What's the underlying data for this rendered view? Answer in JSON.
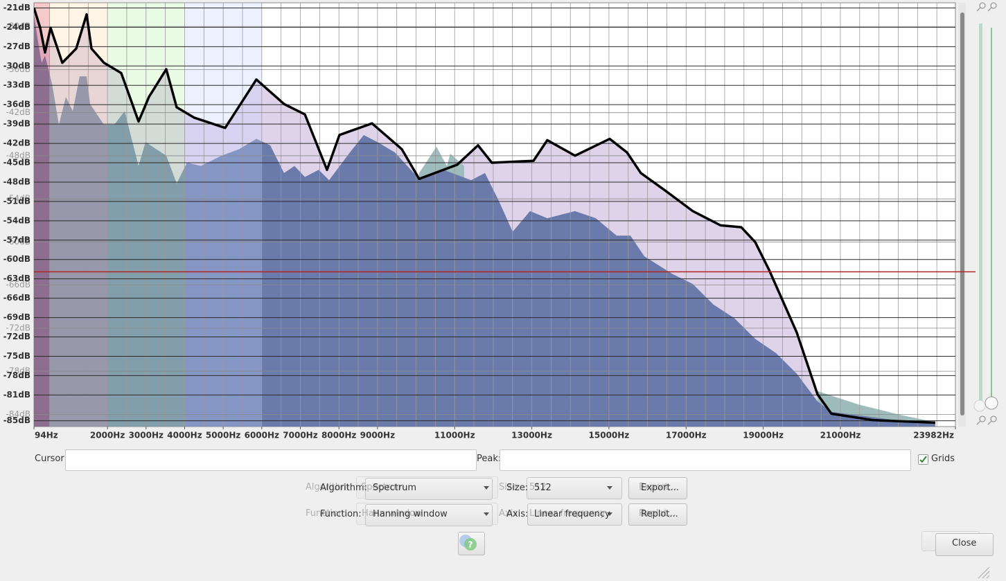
{
  "chart_data": {
    "type": "spectrum",
    "xlim": [
      94,
      23982
    ],
    "xticks": [
      {
        "value": 94,
        "label": "94Hz"
      },
      {
        "value": 2000,
        "label": "2000Hz"
      },
      {
        "value": 3000,
        "label": "3000Hz"
      },
      {
        "value": 4000,
        "label": "4000Hz"
      },
      {
        "value": 5000,
        "label": "5000Hz"
      },
      {
        "value": 6000,
        "label": "6000Hz"
      },
      {
        "value": 7000,
        "label": "7000Hz"
      },
      {
        "value": 8000,
        "label": "8000Hz"
      },
      {
        "value": 9000,
        "label": "9000Hz"
      },
      {
        "value": 11000,
        "label": "11000Hz"
      },
      {
        "value": 13000,
        "label": "13000Hz"
      },
      {
        "value": 15000,
        "label": "15000Hz"
      },
      {
        "value": 17000,
        "label": "17000Hz"
      },
      {
        "value": 19000,
        "label": "19000Hz"
      },
      {
        "value": 21000,
        "label": "21000Hz"
      },
      {
        "value": 23982,
        "label": "23982Hz"
      }
    ],
    "xminor": [
      500,
      1000,
      1500,
      2000,
      2500,
      3000,
      3500,
      4000,
      4500,
      5000,
      5500,
      6000,
      6500,
      7000,
      7500,
      8000,
      8500,
      9000,
      9500,
      10000,
      10500,
      11000,
      11500,
      12000,
      12500,
      13000,
      13500,
      14000,
      14500,
      15000,
      15500,
      16000,
      16500,
      17000,
      17500,
      18000,
      18500,
      19000,
      19500,
      20000,
      20500,
      21000,
      21500,
      22000,
      22500,
      23000,
      23500
    ],
    "ylim": [
      -20.2,
      -85.9
    ],
    "yticks": [
      {
        "value": -21,
        "label": "-21dB"
      },
      {
        "value": -24,
        "label": "-24dB"
      },
      {
        "value": -27,
        "label": "-27dB"
      },
      {
        "value": -30,
        "label": "-30dB"
      },
      {
        "value": -33,
        "label": "-33dB"
      },
      {
        "value": -36,
        "label": "-36dB"
      },
      {
        "value": -39,
        "label": "-39dB"
      },
      {
        "value": -42,
        "label": "-42dB"
      },
      {
        "value": -45,
        "label": "-45dB"
      },
      {
        "value": -48,
        "label": "-48dB"
      },
      {
        "value": -51,
        "label": "-51dB"
      },
      {
        "value": -54,
        "label": "-54dB"
      },
      {
        "value": -57,
        "label": "-57dB"
      },
      {
        "value": -60,
        "label": "-60dB"
      },
      {
        "value": -63,
        "label": "-63dB"
      },
      {
        "value": -66,
        "label": "-66dB"
      },
      {
        "value": -69,
        "label": "-69dB"
      },
      {
        "value": -72,
        "label": "-72dB"
      },
      {
        "value": -75,
        "label": "-75dB"
      },
      {
        "value": -78,
        "label": "-78dB"
      },
      {
        "value": -81,
        "label": "-81dB"
      },
      {
        "value": -85,
        "label": "-85dB"
      }
    ],
    "ghost_ylim": [
      -26.7,
      -85.7
    ],
    "ghost_yticks": [
      {
        "value": -30,
        "label": "-30dB"
      },
      {
        "value": -36,
        "label": "-36dB"
      },
      {
        "value": -42,
        "label": "-42dB"
      },
      {
        "value": -48,
        "label": "-48dB"
      },
      {
        "value": -54,
        "label": "-54dB"
      },
      {
        "value": -60,
        "label": "-60dB"
      },
      {
        "value": -66,
        "label": "-66dB"
      },
      {
        "value": -72,
        "label": "-72dB"
      },
      {
        "value": -78,
        "label": "-78dB"
      },
      {
        "value": -84,
        "label": "-84dB"
      }
    ],
    "bands": [
      {
        "from": 94,
        "to": 500,
        "color": "#e05050"
      },
      {
        "from": 500,
        "to": 2000,
        "color": "#ffd9a8"
      },
      {
        "from": 2000,
        "to": 4000,
        "color": "#b6f0a8"
      },
      {
        "from": 4000,
        "to": 6000,
        "color": "#c2d2ff"
      }
    ],
    "threshold": -61.9,
    "threshold_color": "#b22222",
    "peak": {
      "color": "#000000",
      "fill_color": "#d9cbe6",
      "x": [
        94,
        256,
        381,
        525,
        830,
        1190,
        1460,
        1585,
        1908,
        2357,
        2806,
        3075,
        3524,
        3794,
        4243,
        5051,
        5860,
        6578,
        7117,
        7691,
        8014,
        8858,
        9631,
        10080,
        11067,
        11606,
        11965,
        13043,
        13402,
        14120,
        15019,
        15468,
        15827,
        16456,
        17174,
        17892,
        18431,
        18791,
        19150,
        19868,
        20407,
        20766,
        21844,
        23460
      ],
      "values": [
        -21,
        -24.1,
        -27.9,
        -24.1,
        -29.5,
        -27.3,
        -22,
        -27.3,
        -29.5,
        -31.1,
        -38.6,
        -34.8,
        -30.5,
        -36.4,
        -38,
        -39.6,
        -32.1,
        -35.9,
        -37.5,
        -46.1,
        -40.7,
        -38.9,
        -42.9,
        -47.5,
        -45.3,
        -42.3,
        -45,
        -44.7,
        -41.5,
        -43.9,
        -41.3,
        -43.4,
        -46.6,
        -49.3,
        -52.5,
        -54.7,
        -55,
        -57.3,
        -61.6,
        -71.3,
        -80.9,
        -83.9,
        -84.9,
        -85.3
      ]
    },
    "areas": [
      {
        "color": "#9fbcbc",
        "x": [
          10080,
          10529,
          10798,
          10888,
          11247,
          null,
          20407,
          20766,
          21485,
          22562,
          23460
        ],
        "values": [
          -46.6,
          -42.5,
          -45.5,
          -43.6,
          -45.5,
          null,
          -80.4,
          -81.1,
          -82.5,
          -84.1,
          -85.2
        ]
      },
      {
        "color": "#6a7bab",
        "x": [
          94,
          202,
          292,
          381,
          561,
          741,
          920,
          1100,
          1279,
          1460,
          1549,
          1908,
          2177,
          2447,
          2626,
          2806,
          2986,
          3524,
          3794,
          4063,
          4422,
          4961,
          5410,
          5860,
          6219,
          6578,
          6847,
          7117,
          7476,
          7745,
          8284,
          8643,
          9002,
          9451,
          10080,
          10708,
          11427,
          11786,
          12145,
          12504,
          12953,
          13402,
          14120,
          14659,
          15198,
          15557,
          15917,
          16635,
          17174,
          17713,
          18252,
          18791,
          19329,
          19868,
          20407,
          20766,
          22562,
          23460
        ],
        "values": [
          -22,
          -26.3,
          -29.5,
          -28.4,
          -32.7,
          -39.1,
          -34.8,
          -37,
          -31.6,
          -31.6,
          -35.9,
          -39.1,
          -39.1,
          -37,
          -41.3,
          -45.5,
          -41.8,
          -43.9,
          -48.2,
          -45,
          -45.5,
          -43.9,
          -42.9,
          -41.3,
          -42.3,
          -46.6,
          -45.5,
          -47.2,
          -46.1,
          -47.7,
          -43.4,
          -40.7,
          -41.8,
          -43.4,
          -47.5,
          -46.1,
          -47.7,
          -46.6,
          -50.9,
          -55.7,
          -52.5,
          -53.6,
          -52.5,
          -53.6,
          -56.3,
          -56.3,
          -59.5,
          -62.2,
          -63.8,
          -67,
          -69.1,
          -72.3,
          -74.5,
          -77.7,
          -82,
          -83.6,
          -85,
          -85.4
        ]
      }
    ]
  },
  "controls": {
    "cursor_label": "Cursor:",
    "peak_label": "Peak:",
    "grids_label": "Grids",
    "grids": true,
    "algorithm_label": "Algorithm:",
    "algorithm": "Spectrum",
    "size_label": "Size:",
    "size": 512,
    "export": "Export...",
    "function_label": "Function:",
    "function": "Hanning window",
    "function_ghost": "Hann window",
    "axis_label": "Axis:",
    "axis": "Linear frequency",
    "replot": "Replot...",
    "close": "Close"
  }
}
